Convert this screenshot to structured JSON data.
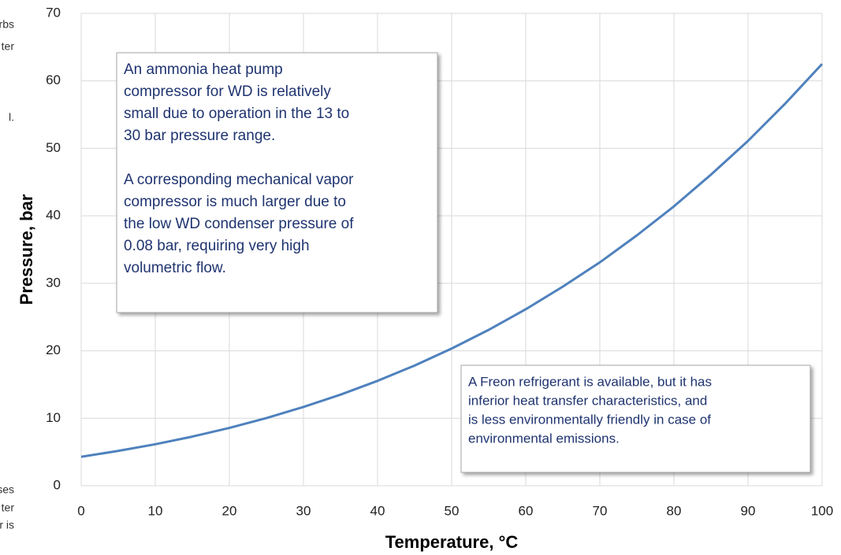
{
  "chart_data": {
    "type": "line",
    "x_label": "Temperature, °C",
    "y_label": "Pressure, bar",
    "x": [
      0,
      5,
      10,
      15,
      20,
      25,
      30,
      35,
      40,
      45,
      50,
      55,
      60,
      65,
      70,
      75,
      80,
      85,
      90,
      95,
      100
    ],
    "series": [
      {
        "color": "#4f81bd",
        "values": [
          4.29,
          5.16,
          6.15,
          7.28,
          8.57,
          10.03,
          11.67,
          13.5,
          15.54,
          17.81,
          20.33,
          23.1,
          26.15,
          29.5,
          33.1,
          37.1,
          41.4,
          46.1,
          51.1,
          56.6,
          62.5
        ]
      }
    ],
    "xlim": [
      0,
      100
    ],
    "xticks": [
      0,
      10,
      20,
      30,
      40,
      50,
      60,
      70,
      80,
      90,
      100
    ],
    "ylim": [
      0,
      70
    ],
    "yticks": [
      0,
      10,
      20,
      30,
      40,
      50,
      60,
      70
    ],
    "grid": true,
    "annotations": [
      {
        "paragraphs": [
          [
            "An ammonia heat pump",
            "compressor for WD is relatively",
            "small due to operation in the 13 to",
            "30 bar pressure range."
          ],
          [
            "A corresponding mechanical vapor",
            "compressor is much larger due to",
            "the low WD condenser pressure of",
            "0.08 bar, requiring very high",
            "volumetric flow."
          ]
        ]
      },
      {
        "paragraphs": [
          [
            "A Freon refrigerant is available, but it has",
            "inferior heat transfer characteristics, and",
            "is less environmentally friendly in case of",
            "environmental emissions."
          ]
        ]
      }
    ],
    "margin_text": [
      "rbs",
      "ter",
      "l.",
      "ses",
      "ter",
      "er is"
    ]
  }
}
